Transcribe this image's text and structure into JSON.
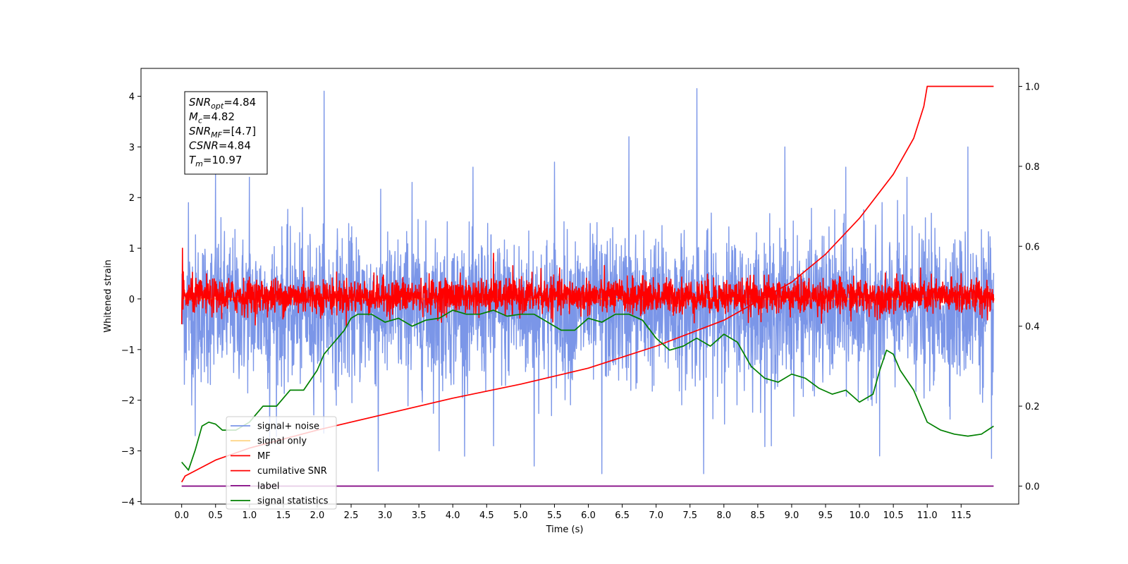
{
  "chart_data": {
    "type": "line",
    "xlabel": "Time (s)",
    "ylabel": "Whitened strain",
    "xlim": [
      -0.6,
      12.35
    ],
    "ylim": [
      -4.05,
      4.55
    ],
    "y2lim": [
      -0.045,
      1.045
    ],
    "x_ticks": [
      "0.0",
      "0.5",
      "1.0",
      "1.5",
      "2.0",
      "2.5",
      "3.0",
      "3.5",
      "4.0",
      "4.5",
      "5.0",
      "5.5",
      "6.0",
      "6.5",
      "7.0",
      "7.5",
      "8.0",
      "8.5",
      "9.0",
      "9.5",
      "10.0",
      "10.5",
      "11.0",
      "11.5"
    ],
    "y_ticks": [
      "-4",
      "-3",
      "-2",
      "-1",
      "0",
      "1",
      "2",
      "3",
      "4"
    ],
    "y2_ticks": [
      "0.0",
      "0.2",
      "0.4",
      "0.6",
      "0.8",
      "1.0"
    ],
    "grid": false,
    "legend_position": "lower-left",
    "annotation": {
      "lines": [
        {
          "sym": "SNR",
          "sub": "opt",
          "value": "=4.84"
        },
        {
          "sym": "M",
          "sub": "c",
          "value": "=4.82"
        },
        {
          "sym": "SNR",
          "sub": "MF",
          "value": "=[4.7]"
        },
        {
          "sym": "CSNR",
          "sub": "",
          "value": "=4.84"
        },
        {
          "sym": "T",
          "sub": "m",
          "value": "=10.97"
        }
      ]
    },
    "series": [
      {
        "name": "signal+ noise",
        "color": "#7b96e8",
        "axis": "left",
        "kind": "noise",
        "x_range": [
          0,
          11.98
        ],
        "mean": -0.2,
        "spread": 0.85,
        "peak_points": [
          [
            0.1,
            1.9
          ],
          [
            0.5,
            2.5
          ],
          [
            1.0,
            2.4
          ],
          [
            2.1,
            4.1
          ],
          [
            3.4,
            2.3
          ],
          [
            4.3,
            2.6
          ],
          [
            5.5,
            2.7
          ],
          [
            6.6,
            3.2
          ],
          [
            7.6,
            4.15
          ],
          [
            8.9,
            3.0
          ],
          [
            9.8,
            2.6
          ],
          [
            10.7,
            2.4
          ],
          [
            11.6,
            3.0
          ]
        ],
        "trough_points": [
          [
            0.2,
            -2.7
          ],
          [
            1.3,
            -2.9
          ],
          [
            2.9,
            -3.4
          ],
          [
            3.8,
            -3.0
          ],
          [
            4.6,
            -2.9
          ],
          [
            5.2,
            -3.3
          ],
          [
            6.2,
            -3.45
          ],
          [
            7.7,
            -3.45
          ],
          [
            8.7,
            -2.9
          ],
          [
            10.3,
            -3.1
          ],
          [
            11.95,
            -3.15
          ]
        ]
      },
      {
        "name": "signal only",
        "color": "#fed17b",
        "axis": "left",
        "kind": "line",
        "x": [
          0,
          12
        ],
        "y": [
          0,
          0
        ]
      },
      {
        "name": "MF",
        "color": "#ff0000",
        "axis": "left",
        "kind": "noise",
        "x_range": [
          0,
          11.98
        ],
        "mean": 0.05,
        "spread": 0.2,
        "peak_points": [
          [
            0.01,
            1.0
          ],
          [
            1.8,
            0.55
          ],
          [
            4.6,
            0.9
          ],
          [
            5.3,
            0.6
          ],
          [
            11.5,
            0.5
          ]
        ],
        "trough_points": [
          [
            0.0,
            -0.5
          ]
        ]
      },
      {
        "name": "cumilative SNR",
        "color": "#ff0000",
        "axis": "right",
        "kind": "line",
        "x": [
          0,
          0.05,
          0.5,
          1.0,
          2.0,
          3.0,
          4.0,
          5.0,
          6.0,
          7.0,
          8.0,
          9.0,
          9.5,
          10.0,
          10.5,
          10.8,
          10.95,
          11.0,
          11.98
        ],
        "y": [
          0.01,
          0.025,
          0.065,
          0.095,
          0.14,
          0.18,
          0.22,
          0.255,
          0.295,
          0.35,
          0.415,
          0.51,
          0.58,
          0.67,
          0.78,
          0.87,
          0.95,
          1.0,
          1.0
        ]
      },
      {
        "name": "label",
        "color": "#800080",
        "axis": "right",
        "kind": "line",
        "x": [
          0,
          11.98
        ],
        "y": [
          0.0,
          0.0
        ]
      },
      {
        "name": "signal statistics",
        "color": "#008000",
        "axis": "right",
        "kind": "line",
        "x": [
          0,
          0.1,
          0.2,
          0.3,
          0.4,
          0.5,
          0.6,
          0.8,
          1.0,
          1.2,
          1.4,
          1.6,
          1.8,
          2.0,
          2.1,
          2.2,
          2.3,
          2.4,
          2.5,
          2.6,
          2.8,
          3.0,
          3.2,
          3.4,
          3.6,
          3.8,
          4.0,
          4.2,
          4.4,
          4.6,
          4.8,
          5.0,
          5.2,
          5.4,
          5.6,
          5.8,
          6.0,
          6.2,
          6.4,
          6.6,
          6.8,
          7.0,
          7.2,
          7.4,
          7.6,
          7.8,
          8.0,
          8.2,
          8.4,
          8.6,
          8.8,
          9.0,
          9.2,
          9.4,
          9.6,
          9.8,
          10.0,
          10.2,
          10.3,
          10.4,
          10.5,
          10.6,
          10.8,
          11.0,
          11.2,
          11.4,
          11.6,
          11.8,
          11.98
        ],
        "y": [
          0.06,
          0.04,
          0.09,
          0.15,
          0.16,
          0.155,
          0.14,
          0.14,
          0.16,
          0.2,
          0.2,
          0.24,
          0.24,
          0.29,
          0.33,
          0.35,
          0.37,
          0.39,
          0.42,
          0.43,
          0.43,
          0.41,
          0.42,
          0.4,
          0.415,
          0.42,
          0.44,
          0.43,
          0.43,
          0.44,
          0.425,
          0.43,
          0.43,
          0.41,
          0.39,
          0.39,
          0.42,
          0.41,
          0.43,
          0.43,
          0.415,
          0.37,
          0.34,
          0.35,
          0.37,
          0.35,
          0.38,
          0.36,
          0.3,
          0.27,
          0.26,
          0.28,
          0.27,
          0.245,
          0.23,
          0.24,
          0.21,
          0.23,
          0.29,
          0.34,
          0.33,
          0.29,
          0.24,
          0.16,
          0.14,
          0.13,
          0.125,
          0.13,
          0.15
        ]
      }
    ]
  }
}
